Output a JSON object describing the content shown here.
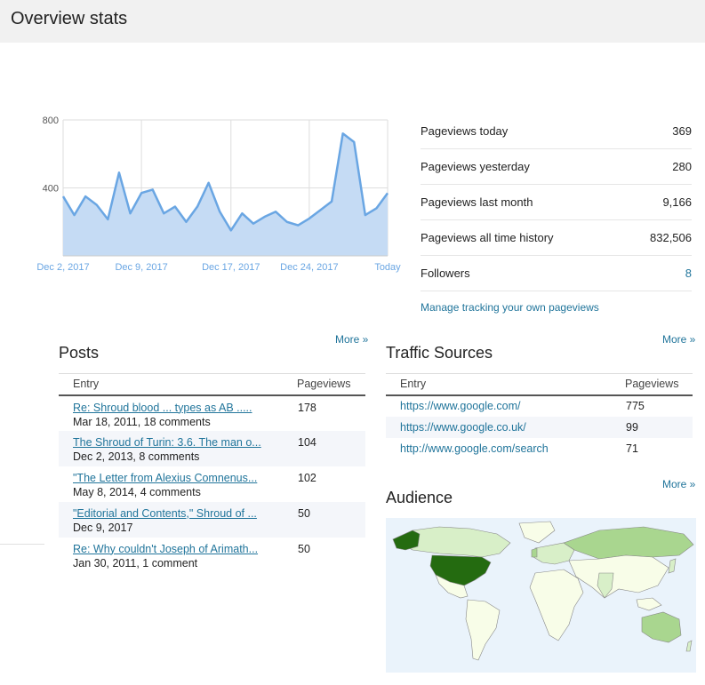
{
  "header": {
    "title": "Overview stats"
  },
  "chart_data": {
    "type": "area",
    "x_tick_labels": [
      "Dec 2, 2017",
      "Dec 9, 2017",
      "Dec 17, 2017",
      "Dec 24, 2017",
      "Today"
    ],
    "y_tick_labels": [
      "800",
      "400"
    ],
    "ylim": [
      0,
      800
    ],
    "grid": true,
    "values": [
      350,
      240,
      350,
      300,
      215,
      490,
      250,
      370,
      390,
      250,
      290,
      200,
      290,
      430,
      260,
      150,
      250,
      190,
      230,
      260,
      200,
      180,
      220,
      270,
      320,
      720,
      670,
      240,
      280,
      369
    ],
    "colors": {
      "line": "#6aa6e3",
      "fill": "#c5dbf4",
      "grid": "#dddddd"
    }
  },
  "stats": {
    "rows": [
      {
        "label": "Pageviews today",
        "value": "369"
      },
      {
        "label": "Pageviews yesterday",
        "value": "280"
      },
      {
        "label": "Pageviews last month",
        "value": "9,166"
      },
      {
        "label": "Pageviews all time history",
        "value": "832,506"
      },
      {
        "label": "Followers",
        "value": "8"
      }
    ],
    "manage_link": "Manage tracking your own pageviews"
  },
  "posts": {
    "title": "Posts",
    "more": "More »",
    "col_entry": "Entry",
    "col_pageviews": "Pageviews",
    "rows": [
      {
        "title": "Re: Shroud blood ... types as AB .....",
        "meta": "Mar 18, 2011, 18 comments",
        "pageviews": "178"
      },
      {
        "title": "The Shroud of Turin: 3.6. The man o...",
        "meta": "Dec 2, 2013, 8 comments",
        "pageviews": "104"
      },
      {
        "title": "\"The Letter from Alexius Comnenus...",
        "meta": "May 8, 2014, 4 comments",
        "pageviews": "102"
      },
      {
        "title": "\"Editorial and Contents,\" Shroud of ...",
        "meta": "Dec 9, 2017",
        "pageviews": "50"
      },
      {
        "title": "Re: Why couldn't Joseph of Arimath...",
        "meta": "Jan 30, 2011, 1 comment",
        "pageviews": "50"
      }
    ]
  },
  "traffic": {
    "title": "Traffic Sources",
    "more": "More »",
    "col_entry": "Entry",
    "col_pageviews": "Pageviews",
    "rows": [
      {
        "entry": "https://www.google.com/",
        "pageviews": "775"
      },
      {
        "entry": "https://www.google.co.uk/",
        "pageviews": "99"
      },
      {
        "entry": "http://www.google.com/search",
        "pageviews": "71"
      }
    ]
  },
  "audience": {
    "title": "Audience",
    "more": "More »",
    "colors": {
      "ocean": "#eaf3fb",
      "land": "#f8fde8",
      "light": "#d8efc8",
      "medium": "#a9d68f",
      "dark": "#246b10",
      "border": "#888888"
    }
  }
}
